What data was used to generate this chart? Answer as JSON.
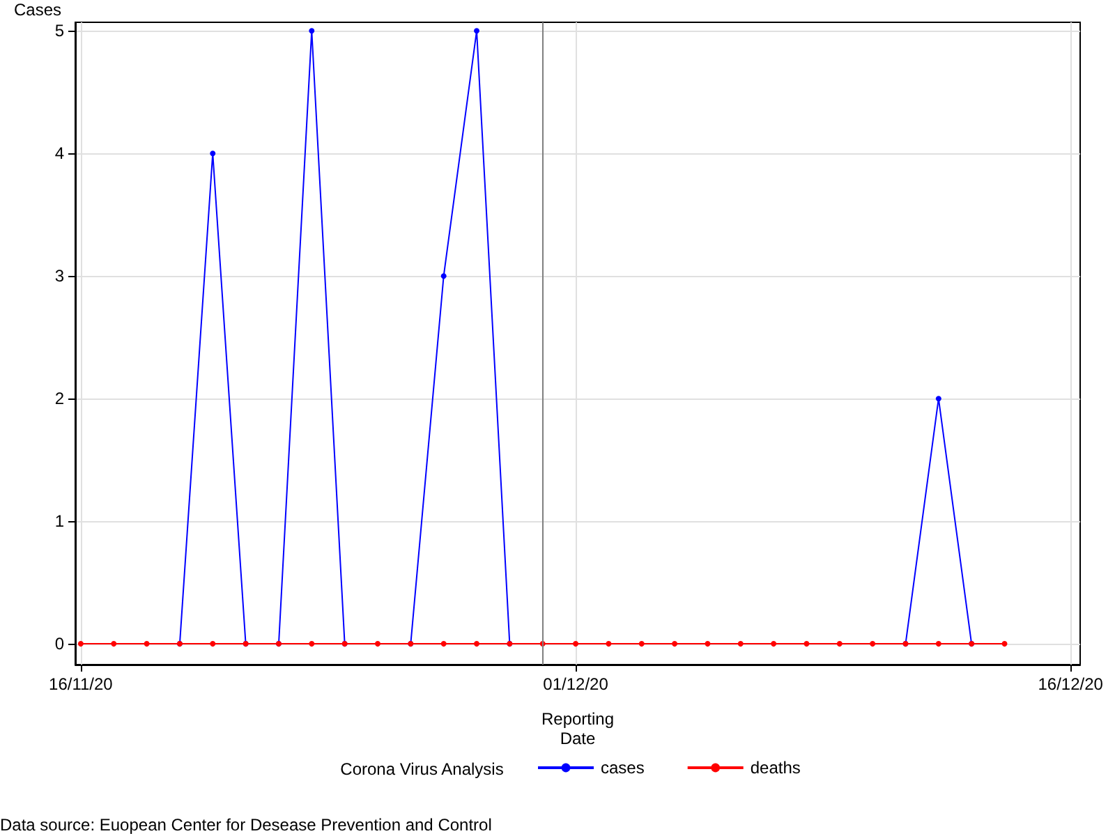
{
  "chart_data": {
    "type": "line",
    "ylabel": "Cases",
    "xlabel": "Reporting\nDate",
    "legend_title": "Corona Virus Analysis",
    "x": [
      "2020-11-16",
      "2020-11-17",
      "2020-11-18",
      "2020-11-19",
      "2020-11-20",
      "2020-11-21",
      "2020-11-22",
      "2020-11-23",
      "2020-11-24",
      "2020-11-25",
      "2020-11-26",
      "2020-11-27",
      "2020-11-28",
      "2020-11-29",
      "2020-11-30",
      "2020-12-01",
      "2020-12-02",
      "2020-12-03",
      "2020-12-04",
      "2020-12-05",
      "2020-12-06",
      "2020-12-07",
      "2020-12-08",
      "2020-12-09",
      "2020-12-10",
      "2020-12-11",
      "2020-12-12",
      "2020-12-13",
      "2020-12-14"
    ],
    "series": [
      {
        "name": "cases",
        "color": "#0000ff",
        "values": [
          null,
          null,
          null,
          0,
          4,
          0,
          0,
          5,
          0,
          null,
          0,
          3,
          5,
          0,
          null,
          null,
          null,
          null,
          null,
          null,
          null,
          null,
          null,
          null,
          null,
          0,
          2,
          0,
          null
        ]
      },
      {
        "name": "deaths",
        "color": "#ff0000",
        "values": [
          0,
          0,
          0,
          0,
          0,
          0,
          0,
          0,
          0,
          0,
          0,
          0,
          0,
          0,
          0,
          0,
          0,
          0,
          0,
          0,
          0,
          0,
          0,
          0,
          0,
          0,
          0,
          0,
          0
        ]
      }
    ],
    "xlim": [
      "2020-11-15T20:00",
      "2020-12-16T07:00"
    ],
    "xticks": [
      {
        "value": "2020-11-16",
        "label": "16/11/20"
      },
      {
        "value": "2020-12-01",
        "label": "01/12/20"
      },
      {
        "value": "2020-12-16",
        "label": "16/12/20"
      }
    ],
    "ylim": [
      -0.17,
      5.07
    ],
    "yticks": [
      0,
      1,
      2,
      3,
      4,
      5
    ],
    "ref_lines": [
      {
        "axis": "x",
        "value": "2020-11-30",
        "color": "#808080"
      }
    ],
    "grid": true,
    "legend": "bottom",
    "marker": "circle",
    "line_style": "solid",
    "annotations": [
      "Data source: Euopean Center for Desease Prevention and Control"
    ]
  }
}
